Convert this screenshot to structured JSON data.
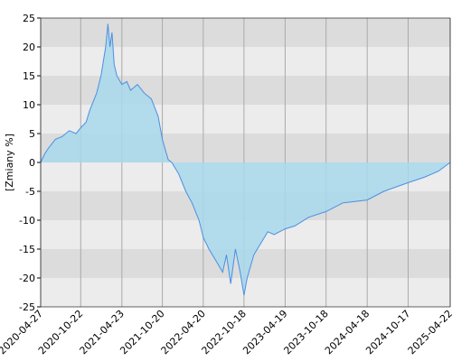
{
  "chart_data": {
    "type": "area",
    "y_label": "[Zmiany %]",
    "color": "#4a90e2",
    "fill": "#a8d8ec",
    "grid": true,
    "xlim": [
      "2020-04-27",
      "2025-04-22"
    ],
    "xticks": [
      "2020-04-27",
      "2020-10-22",
      "2021-04-23",
      "2021-10-20",
      "2022-04-20",
      "2022-10-18",
      "2023-04-19",
      "2023-10-18",
      "2024-04-18",
      "2024-10-17",
      "2025-04-22"
    ],
    "ylim": [
      -25,
      25
    ],
    "yticks": [
      -25,
      -20,
      -15,
      -10,
      -5,
      0,
      5,
      10,
      15,
      20,
      25
    ],
    "x": [
      "2020-04-27",
      "2020-05-15",
      "2020-06-01",
      "2020-07-01",
      "2020-08-01",
      "2020-09-01",
      "2020-10-01",
      "2020-10-22",
      "2020-11-15",
      "2020-12-01",
      "2021-01-01",
      "2021-01-20",
      "2021-02-10",
      "2021-02-20",
      "2021-03-01",
      "2021-03-10",
      "2021-03-20",
      "2021-04-01",
      "2021-04-23",
      "2021-05-15",
      "2021-06-01",
      "2021-07-01",
      "2021-08-01",
      "2021-09-01",
      "2021-10-01",
      "2021-10-20",
      "2021-11-15",
      "2021-12-01",
      "2022-01-01",
      "2022-02-01",
      "2022-03-01",
      "2022-04-01",
      "2022-04-20",
      "2022-05-15",
      "2022-06-15",
      "2022-07-15",
      "2022-08-01",
      "2022-08-20",
      "2022-09-10",
      "2022-10-01",
      "2022-10-18",
      "2022-11-01",
      "2022-12-01",
      "2023-01-01",
      "2023-02-01",
      "2023-03-01",
      "2023-04-19",
      "2023-06-01",
      "2023-08-01",
      "2023-10-18",
      "2024-01-01",
      "2024-04-18",
      "2024-07-01",
      "2024-10-17",
      "2025-01-01",
      "2025-03-01",
      "2025-04-22"
    ],
    "values": [
      0,
      1.5,
      2.5,
      4,
      4.5,
      5.5,
      5,
      6,
      7,
      9,
      12,
      15,
      20,
      24,
      20,
      22.5,
      17,
      15,
      13.5,
      14,
      12.5,
      13.5,
      12,
      11,
      8,
      4,
      0.5,
      0,
      -2,
      -5,
      -7,
      -10,
      -13,
      -15,
      -17,
      -19,
      -16,
      -21,
      -15,
      -19,
      -23,
      -20,
      -16,
      -14,
      -12,
      -12.5,
      -11.5,
      -11,
      -9.5,
      -8.5,
      -7,
      -6.5,
      -5,
      -3.5,
      -2.5,
      -1.5,
      0
    ]
  }
}
